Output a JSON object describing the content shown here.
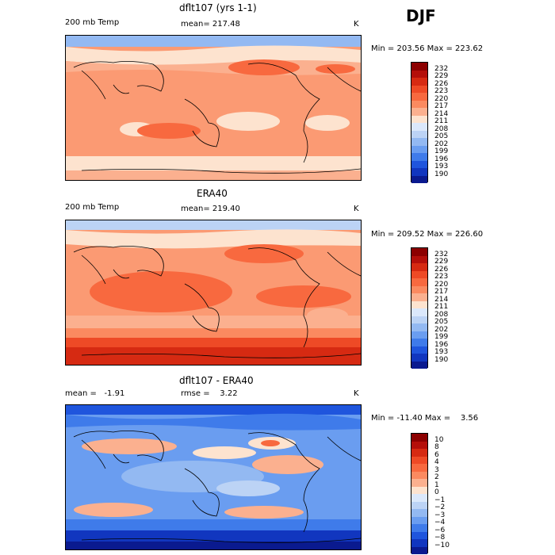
{
  "season": "DJF",
  "chart_data": [
    {
      "type": "heatmap",
      "title": "dflt107 (yrs 1-1)",
      "variable": "200 mb Temp",
      "mean_label": "mean= 217.48",
      "units": "K",
      "minmax": "Min = 203.56 Max = 223.62",
      "colorbar_labels": [
        "232",
        "229",
        "226",
        "223",
        "220",
        "217",
        "214",
        "211",
        "208",
        "205",
        "202",
        "199",
        "196",
        "193",
        "190"
      ],
      "colorbar_colors": [
        "#8c0000",
        "#b40f0a",
        "#d62a12",
        "#ee4a26",
        "#f8693f",
        "#fb8a60",
        "#fbb08f",
        "#fde3cf",
        "#dbe8fb",
        "#bcd3f5",
        "#93b9f2",
        "#6a9df0",
        "#3f7bea",
        "#1f55dd",
        "#1136bf",
        "#0a1a8f"
      ]
    },
    {
      "type": "heatmap",
      "title": "ERA40",
      "variable": "200 mb Temp",
      "mean_label": "mean= 219.40",
      "units": "K",
      "minmax": "Min = 209.52 Max = 226.60",
      "colorbar_labels": [
        "232",
        "229",
        "226",
        "223",
        "220",
        "217",
        "214",
        "211",
        "208",
        "205",
        "202",
        "199",
        "196",
        "193",
        "190"
      ],
      "colorbar_colors": [
        "#8c0000",
        "#b40f0a",
        "#d62a12",
        "#ee4a26",
        "#f8693f",
        "#fb8a60",
        "#fbb08f",
        "#fde3cf",
        "#dbe8fb",
        "#bcd3f5",
        "#93b9f2",
        "#6a9df0",
        "#3f7bea",
        "#1f55dd",
        "#1136bf",
        "#0a1a8f"
      ]
    },
    {
      "type": "heatmap",
      "title": "dflt107 - ERA40",
      "variable": "mean =   -1.91",
      "mean_label": "rmse =    3.22",
      "units": "K",
      "minmax": "Min = -11.40 Max =    3.56",
      "colorbar_labels": [
        "10",
        "8",
        "6",
        "4",
        "3",
        "2",
        "1",
        "0",
        "−1",
        "−2",
        "−3",
        "−4",
        "−6",
        "−8",
        "−10"
      ],
      "colorbar_colors": [
        "#8c0000",
        "#b40f0a",
        "#d62a12",
        "#ee4a26",
        "#f8693f",
        "#fb8a60",
        "#fbb08f",
        "#fde3cf",
        "#dbe8fb",
        "#bcd3f5",
        "#93b9f2",
        "#6a9df0",
        "#3f7bea",
        "#1f55dd",
        "#1136bf",
        "#0a1a8f"
      ]
    }
  ]
}
